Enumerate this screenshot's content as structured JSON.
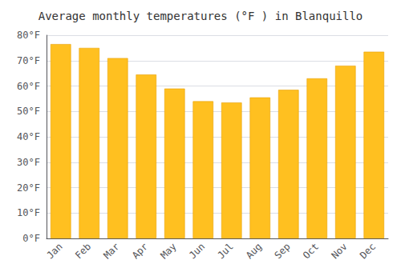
{
  "chart_data": {
    "type": "bar",
    "title": "Average monthly temperatures (°F ) in Blanquillo",
    "categories": [
      "Jan",
      "Feb",
      "Mar",
      "Apr",
      "May",
      "Jun",
      "Jul",
      "Aug",
      "Sep",
      "Oct",
      "Nov",
      "Dec"
    ],
    "values": [
      76.5,
      75.0,
      71.0,
      64.5,
      59.0,
      54.0,
      53.5,
      55.5,
      58.5,
      63.0,
      68.0,
      73.5
    ],
    "color": "#FFC020",
    "ylim": [
      0,
      80
    ],
    "yticks": [
      {
        "value": 0,
        "label": "0°F"
      },
      {
        "value": 10,
        "label": "10°F"
      },
      {
        "value": 20,
        "label": "20°F"
      },
      {
        "value": 30,
        "label": "30°F"
      },
      {
        "value": 40,
        "label": "40°F"
      },
      {
        "value": 50,
        "label": "50°F"
      },
      {
        "value": 60,
        "label": "60°F"
      },
      {
        "value": 70,
        "label": "70°F"
      },
      {
        "value": 80,
        "label": "80°F"
      }
    ],
    "grid": true
  }
}
